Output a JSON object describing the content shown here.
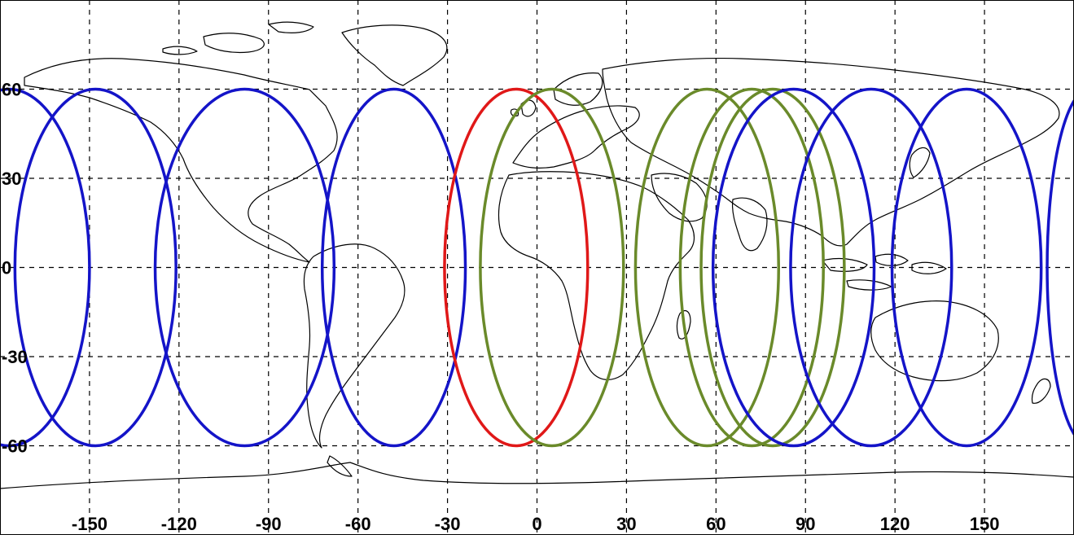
{
  "map": {
    "projection": "equirectangular",
    "lon_range": [
      -180,
      180
    ],
    "lat_range": [
      -90,
      90
    ],
    "grid": "dashed",
    "gridline_lons": [
      -150,
      -120,
      -90,
      -60,
      -30,
      0,
      30,
      60,
      90,
      120,
      150
    ],
    "gridline_lats": [
      60,
      30,
      0,
      -30,
      -60
    ],
    "lon_labels": [
      "-150",
      "-120",
      "-90",
      "-60",
      "-30",
      "0",
      "30",
      "60",
      "90",
      "120",
      "150"
    ],
    "lat_labels": [
      "60",
      "30",
      "0",
      "-30",
      "-60"
    ],
    "coastline_color": "#000000",
    "grid_color": "#000000"
  },
  "coverage": {
    "circles": [
      {
        "center_lon": -177,
        "center_lat": 0,
        "half_width_deg": 27,
        "half_height_deg": 60,
        "color": "#1414c8"
      },
      {
        "center_lon": -148,
        "center_lat": 0,
        "half_width_deg": 27,
        "half_height_deg": 60,
        "color": "#1414c8"
      },
      {
        "center_lon": -98,
        "center_lat": 0,
        "half_width_deg": 30,
        "half_height_deg": 60,
        "color": "#1414c8"
      },
      {
        "center_lon": -48,
        "center_lat": 0,
        "half_width_deg": 24,
        "half_height_deg": 60,
        "color": "#1414c8"
      },
      {
        "center_lon": -7,
        "center_lat": 0,
        "half_width_deg": 24,
        "half_height_deg": 60,
        "color": "#e01818"
      },
      {
        "center_lon": 5,
        "center_lat": 0,
        "half_width_deg": 24,
        "half_height_deg": 60,
        "color": "#6a8a2a"
      },
      {
        "center_lon": 57,
        "center_lat": 0,
        "half_width_deg": 24,
        "half_height_deg": 60,
        "color": "#6a8a2a"
      },
      {
        "center_lon": 72,
        "center_lat": 0,
        "half_width_deg": 24,
        "half_height_deg": 60,
        "color": "#6a8a2a"
      },
      {
        "center_lon": 79,
        "center_lat": 0,
        "half_width_deg": 24,
        "half_height_deg": 60,
        "color": "#6a8a2a"
      },
      {
        "center_lon": 86,
        "center_lat": 0,
        "half_width_deg": 27,
        "half_height_deg": 60,
        "color": "#1414c8"
      },
      {
        "center_lon": 112,
        "center_lat": 0,
        "half_width_deg": 27,
        "half_height_deg": 60,
        "color": "#1414c8"
      },
      {
        "center_lon": 144,
        "center_lat": 0,
        "half_width_deg": 25,
        "half_height_deg": 60,
        "color": "#1414c8"
      },
      {
        "center_lon": 185,
        "center_lat": 0,
        "half_width_deg": 14,
        "half_height_deg": 60,
        "color": "#1414c8"
      }
    ]
  }
}
